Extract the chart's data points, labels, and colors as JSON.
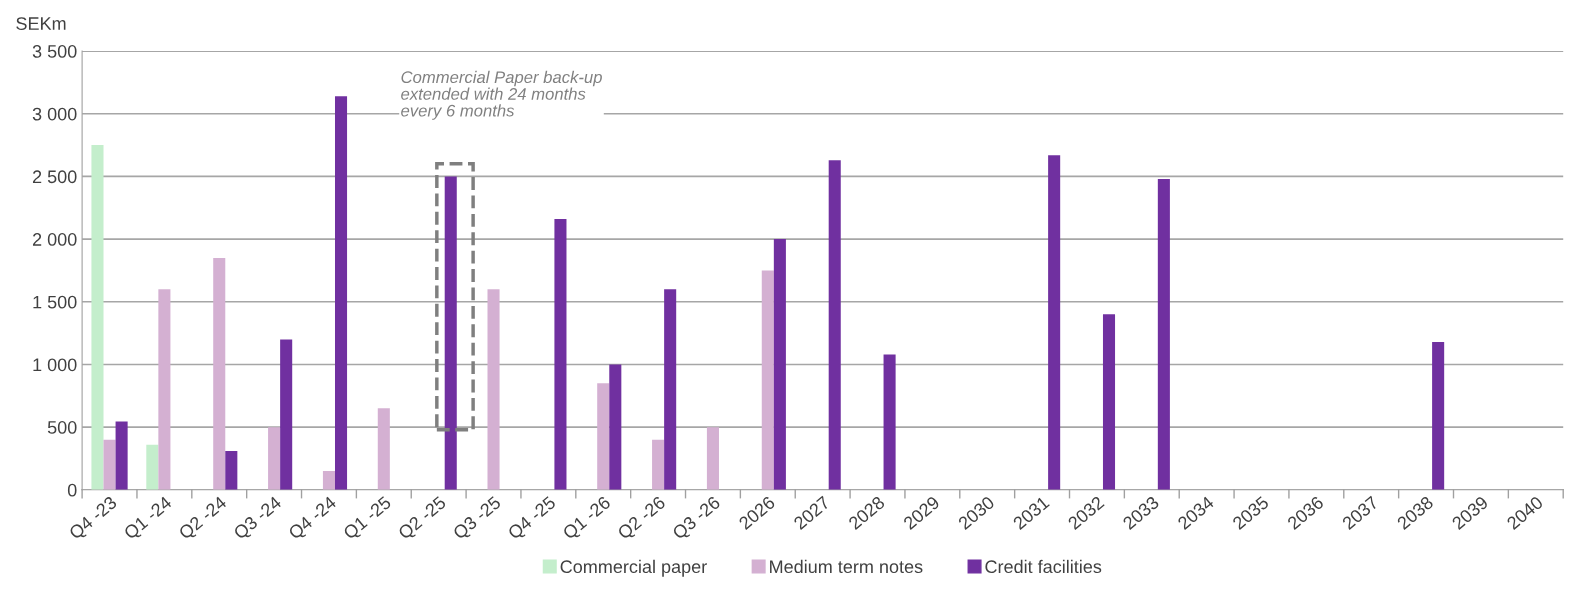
{
  "chart_data": {
    "type": "bar",
    "ylabel": "SEKm",
    "categories": [
      "Q4 -23",
      "Q1 -24",
      "Q2 -24",
      "Q3 -24",
      "Q4 -24",
      "Q1 -25",
      "Q2 -25",
      "Q3 -25",
      "Q4 -25",
      "Q1 -26",
      "Q2 -26",
      "Q3 -26",
      "2026",
      "2027",
      "2028",
      "2029",
      "2030",
      "2031",
      "2032",
      "2033",
      "2034",
      "2035",
      "2036",
      "2037",
      "2038",
      "2039",
      "2040"
    ],
    "series": [
      {
        "name": "Commercial paper",
        "color": "#c4eecc",
        "values": [
          2750,
          360,
          null,
          null,
          null,
          null,
          null,
          null,
          null,
          null,
          null,
          null,
          null,
          null,
          null,
          null,
          null,
          null,
          null,
          null,
          null,
          null,
          null,
          null,
          null,
          null,
          null
        ]
      },
      {
        "name": "Medium term notes",
        "color": "#d4b0d2",
        "values": [
          400,
          1600,
          1850,
          500,
          150,
          650,
          null,
          1600,
          null,
          850,
          400,
          500,
          1750,
          null,
          null,
          null,
          null,
          null,
          null,
          null,
          null,
          null,
          null,
          null,
          null,
          null,
          null
        ]
      },
      {
        "name": "Credit facilities",
        "color": "#7030a0",
        "values": [
          545,
          null,
          310,
          1200,
          3140,
          null,
          2500,
          null,
          2160,
          1000,
          1600,
          null,
          2000,
          2630,
          1080,
          null,
          null,
          2670,
          1400,
          2480,
          null,
          null,
          null,
          null,
          1180,
          null,
          null
        ]
      }
    ],
    "ylim": [
      0,
      3500
    ],
    "yticks": [
      0,
      500,
      {
        "value": 1000,
        "label": "1 000"
      },
      {
        "value": 1500,
        "label": "1 500"
      },
      {
        "value": 2000,
        "label": "2 000"
      },
      {
        "value": 2500,
        "label": "2 500"
      },
      {
        "value": 3000,
        "label": "3 000"
      },
      {
        "value": 3500,
        "label": "3 500"
      }
    ],
    "grid": "y",
    "legend": "bottom",
    "annotations": [
      "Commercial Paper back-up\nextended with 24 months\nevery 6 months"
    ]
  }
}
